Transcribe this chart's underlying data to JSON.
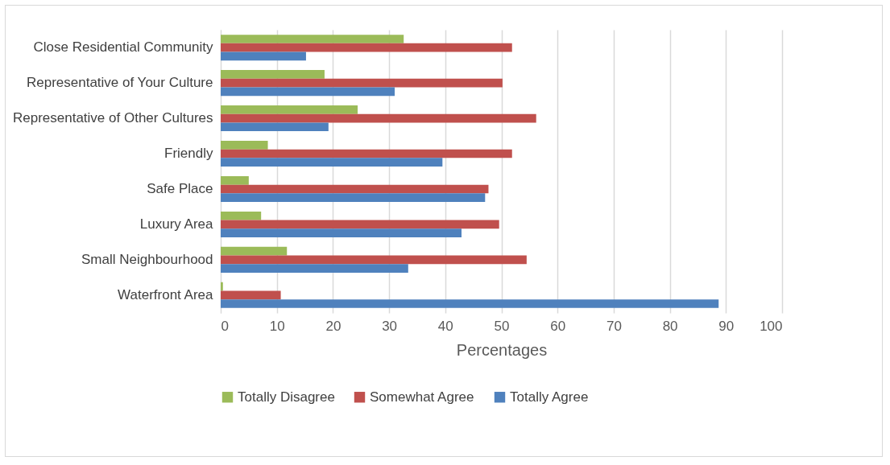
{
  "chart_data": {
    "type": "bar",
    "orientation": "horizontal",
    "xlabel": "Percentages",
    "categories": [
      "Close Residential Community",
      "Representative of Your Culture",
      "Representative of Other Cultures",
      "Friendly",
      "Safe Place",
      "Luxury Area ",
      "Small Neighbourhood",
      "Waterfront Area"
    ],
    "series": [
      {
        "name": "Totally Disagree",
        "color": "#9bbb59",
        "values": [
          32.6,
          18.5,
          24.4,
          8.4,
          5.0,
          7.2,
          11.8,
          0.4
        ]
      },
      {
        "name": "Somewhat Agree",
        "color": "#c0504d",
        "values": [
          51.9,
          50.2,
          56.2,
          51.9,
          47.7,
          49.6,
          54.5,
          10.7
        ]
      },
      {
        "name": "Totally Agree",
        "color": "#4f81bd",
        "values": [
          15.2,
          31.0,
          19.2,
          39.5,
          47.1,
          42.9,
          33.4,
          88.7
        ]
      }
    ],
    "xlim": [
      0,
      100
    ],
    "xticks": [
      0,
      10,
      20,
      30,
      40,
      50,
      60,
      70,
      80,
      90,
      100
    ],
    "grid": "x",
    "legend": "bottom"
  }
}
